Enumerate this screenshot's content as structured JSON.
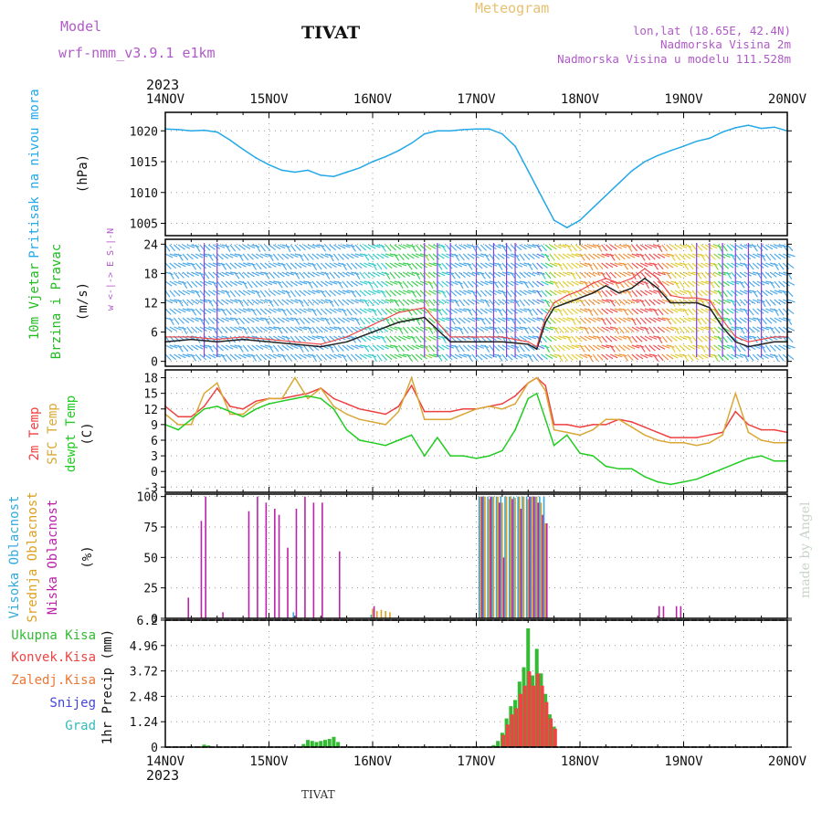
{
  "header": {
    "model_label": "Model",
    "model_name": "wrf-nmm_v3.9.1 e1km",
    "station": "TIVAT",
    "product": "Meteogram",
    "lonlat": "lon,lat (18.65E, 42.4N)",
    "elevation": "Nadmorska Visina 2m",
    "model_elevation": "Nadmorska Visina u modelu 111.528m",
    "credit": "made by Angel",
    "bottom_station": "TIVAT",
    "year": "2023"
  },
  "x_axis": {
    "ticks": [
      "14NOV",
      "15NOV",
      "16NOV",
      "17NOV",
      "18NOV",
      "19NOV",
      "20NOV"
    ],
    "range_hours": [
      0,
      144
    ]
  },
  "colors": {
    "pressure": "#23a8e8",
    "temp2m": "#ee4040",
    "sfc_temp": "#d9a836",
    "dewpoint": "#22cc22",
    "high_cloud": "#33aadd",
    "mid_cloud": "#dda020",
    "low_cloud": "#bb22aa",
    "total_precip": "#33bb33",
    "conv_precip": "#ee4444",
    "frozen_precip": "#ee7733",
    "snow": "#4444dd",
    "graupel": "#33bbbb"
  },
  "chart_data": [
    {
      "type": "line",
      "ylabels": [
        "Pritisak na nivou mora",
        "(hPa)"
      ],
      "yticks": [
        1005,
        1010,
        1015,
        1020
      ],
      "ylim": [
        1003,
        1023
      ],
      "grid": true,
      "series": [
        {
          "key": "pressure",
          "x": [
            0,
            3,
            6,
            9,
            12,
            15,
            18,
            21,
            24,
            27,
            30,
            33,
            36,
            39,
            42,
            45,
            48,
            51,
            54,
            57,
            60,
            63,
            66,
            69,
            72,
            75,
            78,
            81,
            84,
            87,
            90,
            93,
            96,
            99,
            102,
            105,
            108,
            111,
            114,
            117,
            120,
            123,
            126,
            129,
            132,
            135,
            138,
            141,
            144
          ],
          "values": [
            1020.3,
            1020.2,
            1020.0,
            1020.1,
            1019.8,
            1018.5,
            1017.0,
            1015.6,
            1014.5,
            1013.6,
            1013.3,
            1013.6,
            1012.8,
            1012.6,
            1013.3,
            1014.0,
            1015.0,
            1015.8,
            1016.8,
            1018.0,
            1019.5,
            1020.0,
            1020.0,
            1020.2,
            1020.3,
            1020.3,
            1019.5,
            1017.5,
            1013.5,
            1009.5,
            1005.5,
            1004.3,
            1005.5,
            1007.5,
            1009.5,
            1011.5,
            1013.5,
            1015.0,
            1016.0,
            1016.8,
            1017.5,
            1018.3,
            1018.8,
            1019.8,
            1020.5,
            1020.9,
            1020.4,
            1020.6,
            1020.0
          ]
        }
      ]
    },
    {
      "type": "line",
      "ylabels": [
        "10m Vjetar",
        "Brzina i Pravac",
        "(m/s)"
      ],
      "compass": "w <-|-> E   S-|-N",
      "yticks": [
        0,
        6,
        12,
        18,
        24
      ],
      "ylim": [
        -1,
        25
      ],
      "grid": true,
      "series": [
        {
          "key": "wind_speed",
          "x": [
            0,
            6,
            12,
            18,
            24,
            30,
            36,
            42,
            48,
            54,
            60,
            66,
            72,
            78,
            84,
            86,
            88,
            90,
            93,
            96,
            99,
            102,
            105,
            108,
            111,
            114,
            117,
            120,
            123,
            126,
            129,
            132,
            135,
            138,
            141,
            144
          ],
          "values": [
            4.0,
            4.5,
            4.0,
            4.5,
            4.0,
            3.5,
            3.0,
            4.0,
            6.0,
            8.0,
            9.0,
            4.0,
            4.0,
            4.0,
            3.5,
            2.5,
            8.0,
            11.0,
            12.0,
            13.0,
            14.0,
            15.5,
            14.0,
            15.0,
            17.0,
            15.0,
            12.0,
            12.0,
            12.0,
            11.0,
            7.0,
            4.0,
            3.0,
            3.5,
            4.0,
            4.0
          ]
        },
        {
          "key": "wind_gust",
          "x": [
            0,
            6,
            12,
            18,
            24,
            30,
            36,
            42,
            48,
            54,
            60,
            66,
            72,
            78,
            84,
            86,
            88,
            90,
            93,
            96,
            99,
            102,
            105,
            108,
            111,
            114,
            117,
            120,
            123,
            126,
            129,
            132,
            135,
            138,
            141,
            144
          ],
          "values": [
            5.0,
            5.0,
            4.5,
            5.0,
            4.5,
            4.0,
            3.5,
            5.0,
            7.5,
            10.0,
            11.0,
            5.0,
            5.0,
            5.0,
            4.0,
            3.0,
            9.0,
            12.0,
            13.5,
            14.5,
            16.0,
            17.0,
            16.0,
            17.0,
            19.0,
            17.0,
            13.5,
            13.0,
            13.0,
            12.5,
            8.5,
            5.0,
            4.0,
            4.5,
            5.0,
            5.0
          ]
        }
      ]
    },
    {
      "type": "line",
      "ylabels": [
        "2m Temp",
        "SFC Temp",
        "dewpt Temp",
        "(C)"
      ],
      "yticks": [
        -3,
        0,
        3,
        6,
        9,
        12,
        15,
        18
      ],
      "ylim": [
        -4,
        19.5
      ],
      "grid": true,
      "series": [
        {
          "key": "temp2m",
          "x": [
            0,
            3,
            6,
            9,
            12,
            15,
            18,
            21,
            24,
            27,
            30,
            33,
            36,
            39,
            42,
            45,
            48,
            51,
            54,
            57,
            60,
            63,
            66,
            69,
            72,
            75,
            78,
            81,
            84,
            86,
            88,
            90,
            93,
            96,
            99,
            102,
            105,
            108,
            111,
            114,
            117,
            120,
            123,
            126,
            129,
            132,
            135,
            138,
            141,
            144
          ],
          "values": [
            12.5,
            10.5,
            10.5,
            12.5,
            16.0,
            12.5,
            12.0,
            13.5,
            14.0,
            14.0,
            14.5,
            15.0,
            16.0,
            14.0,
            13.0,
            12.0,
            11.5,
            11.0,
            12.5,
            16.5,
            11.5,
            11.5,
            11.5,
            12.0,
            12.0,
            12.5,
            13.0,
            14.5,
            17.0,
            18.0,
            16.5,
            9.0,
            9.0,
            8.5,
            9.0,
            9.0,
            10.0,
            9.5,
            8.5,
            7.5,
            6.5,
            6.5,
            6.5,
            7.0,
            7.5,
            11.5,
            9.0,
            8.0,
            8.0,
            7.5
          ]
        },
        {
          "key": "sfc_temp",
          "x": [
            0,
            3,
            6,
            9,
            12,
            15,
            18,
            21,
            24,
            27,
            30,
            33,
            36,
            39,
            42,
            45,
            48,
            51,
            54,
            57,
            60,
            63,
            66,
            69,
            72,
            75,
            78,
            81,
            84,
            86,
            88,
            90,
            93,
            96,
            99,
            102,
            105,
            108,
            111,
            114,
            117,
            120,
            123,
            126,
            129,
            132,
            135,
            138,
            141,
            144
          ],
          "values": [
            11.0,
            9.0,
            9.0,
            15.0,
            17.0,
            11.0,
            11.0,
            13.0,
            14.0,
            14.0,
            18.0,
            14.0,
            16.0,
            12.5,
            11.0,
            10.0,
            9.5,
            9.0,
            11.5,
            18.0,
            10.0,
            10.0,
            10.0,
            11.0,
            12.0,
            12.5,
            12.0,
            13.0,
            17.0,
            18.0,
            15.5,
            8.0,
            7.5,
            7.0,
            8.0,
            10.0,
            10.0,
            8.5,
            7.0,
            6.0,
            5.5,
            5.5,
            5.0,
            5.5,
            7.0,
            15.0,
            7.5,
            6.0,
            5.5,
            5.5
          ]
        },
        {
          "key": "dewpoint",
          "x": [
            0,
            3,
            6,
            9,
            12,
            15,
            18,
            21,
            24,
            27,
            30,
            33,
            36,
            39,
            42,
            45,
            48,
            51,
            54,
            57,
            60,
            63,
            66,
            69,
            72,
            75,
            78,
            81,
            84,
            86,
            88,
            90,
            93,
            96,
            99,
            102,
            105,
            108,
            111,
            114,
            117,
            120,
            123,
            126,
            129,
            132,
            135,
            138,
            141,
            144
          ],
          "values": [
            9.0,
            8.0,
            10.0,
            12.0,
            12.5,
            11.5,
            10.5,
            12.0,
            13.0,
            13.5,
            14.0,
            14.5,
            14.0,
            12.0,
            8.0,
            6.0,
            5.5,
            5.0,
            6.0,
            7.0,
            3.0,
            6.5,
            3.0,
            3.0,
            2.5,
            3.0,
            4.0,
            8.0,
            14.0,
            15.0,
            10.0,
            5.0,
            7.0,
            3.5,
            3.0,
            1.0,
            0.5,
            0.5,
            -1.0,
            -2.0,
            -2.5,
            -2.0,
            -1.5,
            -0.5,
            0.5,
            1.5,
            2.5,
            3.0,
            2.0,
            2.0
          ]
        }
      ]
    },
    {
      "type": "bar",
      "ylabels": [
        "Visoka Oblacnost",
        "Srednja Oblacnost",
        "Niska Oblacnost",
        "(%)"
      ],
      "yticks": [
        0,
        25,
        50,
        75,
        100
      ],
      "ylim": [
        0,
        102
      ],
      "grid": true,
      "series": [
        {
          "key": "high_cloud",
          "x": [
            0,
            6,
            12,
            18,
            24,
            30,
            36,
            42,
            48,
            54,
            60,
            66,
            72,
            73,
            74,
            75,
            76,
            77,
            78,
            79,
            80,
            81,
            82,
            83,
            84,
            85,
            86,
            87,
            88,
            90,
            96,
            102,
            108,
            114,
            120,
            126,
            132,
            138,
            144
          ],
          "values": [
            0,
            0,
            0,
            0,
            0,
            5,
            0,
            0,
            3,
            0,
            0,
            0,
            0,
            100,
            100,
            100,
            100,
            100,
            100,
            100,
            100,
            100,
            100,
            100,
            100,
            100,
            100,
            100,
            100,
            0,
            0,
            0,
            0,
            0,
            0,
            0,
            0,
            0,
            0
          ]
        },
        {
          "key": "mid_cloud",
          "x": [
            0,
            6,
            12,
            18,
            24,
            30,
            36,
            42,
            48,
            49,
            50,
            51,
            52,
            54,
            60,
            66,
            72,
            73,
            74,
            75,
            76,
            77,
            78,
            79,
            80,
            81,
            82,
            83,
            84,
            85,
            86,
            87,
            88,
            90,
            96,
            102,
            108,
            114,
            120,
            126,
            132,
            138,
            144
          ],
          "values": [
            0,
            0,
            0,
            0,
            0,
            0,
            0,
            0,
            8,
            6,
            7,
            6,
            5,
            0,
            0,
            0,
            0,
            100,
            100,
            98,
            100,
            100,
            95,
            100,
            100,
            99,
            100,
            100,
            98,
            100,
            100,
            95,
            78,
            0,
            0,
            0,
            0,
            0,
            0,
            0,
            0,
            0,
            0
          ]
        },
        {
          "key": "low_cloud",
          "x": [
            5,
            8,
            9,
            13,
            19,
            21,
            23,
            25,
            26,
            28,
            30,
            32,
            34,
            36,
            40,
            48,
            73,
            75,
            77,
            78,
            80,
            82,
            84,
            85,
            86,
            87,
            88,
            114,
            115,
            118,
            119
          ],
          "values": [
            17,
            80,
            100,
            5,
            88,
            100,
            95,
            90,
            85,
            58,
            90,
            100,
            95,
            95,
            55,
            10,
            100,
            100,
            95,
            50,
            98,
            90,
            100,
            100,
            95,
            85,
            78,
            10,
            10,
            10,
            10
          ]
        }
      ]
    },
    {
      "type": "bar",
      "ylabels": [
        "Ukupna Kisa",
        "Konvek.Kisa",
        "Zaledj.Kisa",
        "Snijeg",
        "Grad",
        "1hr Precip (mm)"
      ],
      "yticks": [
        0,
        1.24,
        2.48,
        3.72,
        4.96,
        6.2
      ],
      "ytick_labels": [
        "0",
        "1.24",
        "2.48",
        "3.72",
        "4.96",
        "6.2"
      ],
      "ylim": [
        0,
        6.2
      ],
      "grid": true,
      "series": [
        {
          "key": "total_precip",
          "x": [
            9,
            10,
            32,
            33,
            34,
            35,
            36,
            37,
            38,
            39,
            40,
            76,
            77,
            78,
            79,
            80,
            81,
            82,
            83,
            84,
            85,
            86,
            87,
            88,
            89,
            90
          ],
          "values": [
            0.12,
            0.08,
            0.15,
            0.35,
            0.3,
            0.25,
            0.3,
            0.35,
            0.4,
            0.5,
            0.25,
            0.1,
            0.3,
            0.7,
            1.4,
            2.0,
            2.3,
            3.2,
            3.9,
            5.8,
            3.5,
            4.8,
            3.6,
            2.6,
            1.6,
            1.0
          ]
        },
        {
          "key": "conv_precip",
          "x": [
            78,
            79,
            80,
            81,
            82,
            83,
            84,
            85,
            86,
            87,
            88,
            89,
            90
          ],
          "values": [
            0.6,
            1.1,
            1.6,
            1.9,
            2.6,
            3.0,
            3.7,
            3.0,
            3.6,
            3.0,
            2.2,
            1.4,
            0.9
          ]
        }
      ]
    }
  ]
}
